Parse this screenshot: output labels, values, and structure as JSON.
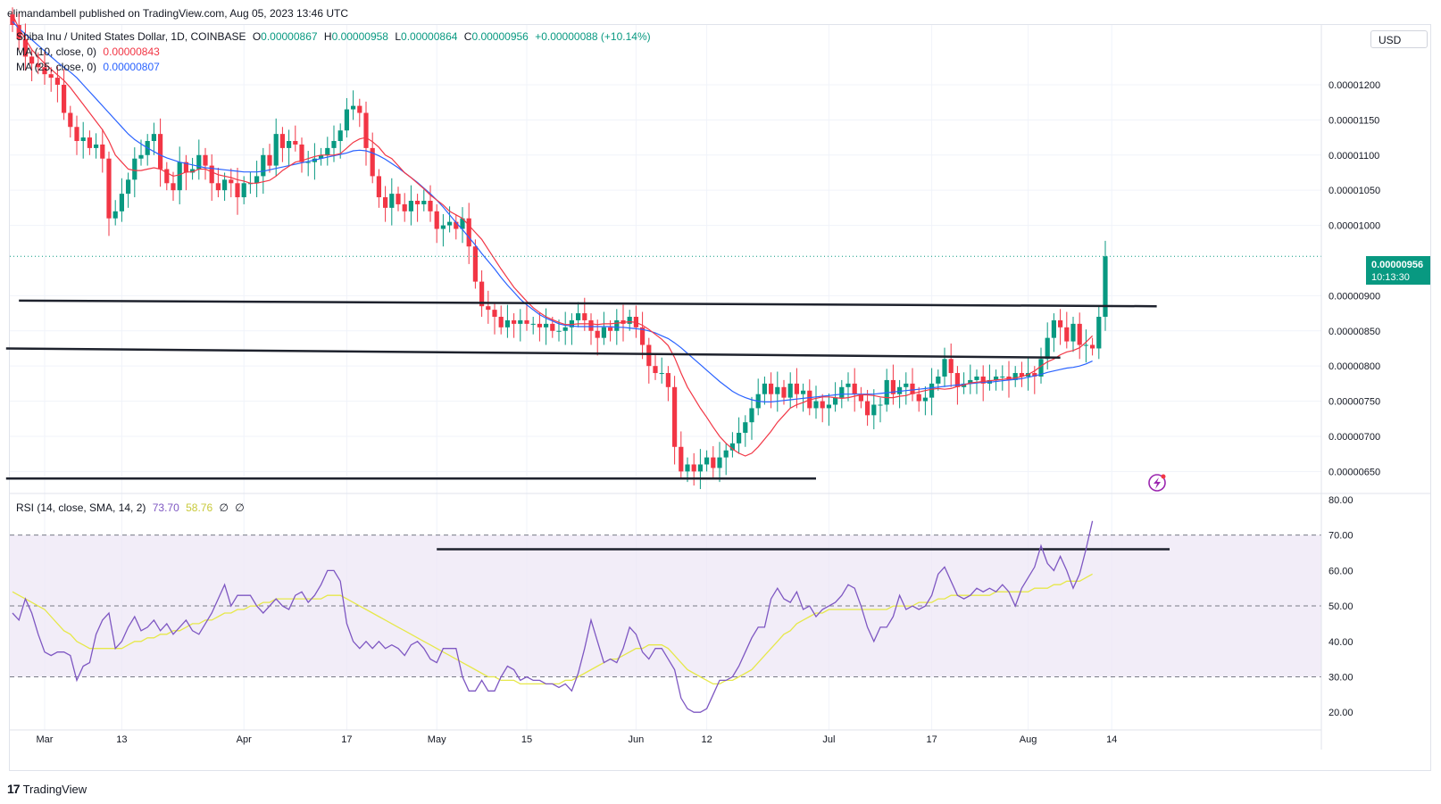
{
  "header": {
    "publisher_line": "elimandambell published on TradingView.com, Aug 05, 2023 13:46 UTC"
  },
  "legend": {
    "symbol": "Shiba Inu / United States Dollar, 1D, COINBASE",
    "ohlc": {
      "o_label": "O",
      "o": "0.00000867",
      "h_label": "H",
      "h": "0.00000958",
      "l_label": "L",
      "l": "0.00000864",
      "c_label": "C",
      "c": "0.00000956",
      "change": "+0.00000088 (+10.14%)"
    },
    "ma10": {
      "label": "MA (10, close, 0)",
      "value": "0.00000843"
    },
    "ma25": {
      "label": "MA (25, close, 0)",
      "value": "0.00000807"
    },
    "rsi": {
      "label": "RSI (14, close, SMA, 14, 2)",
      "value": "73.70",
      "sma": "58.76",
      "extra1": "∅",
      "extra2": "∅"
    }
  },
  "currency_button": "USD",
  "last_price": {
    "price": "0.00000956",
    "countdown": "10:13:30"
  },
  "brand": {
    "name": "TradingView"
  },
  "colors": {
    "up": "#089981",
    "down": "#f23645",
    "ma10": "#f23645",
    "ma25": "#2962ff",
    "rsi_line": "#7e57c2",
    "rsi_sma": "#e6e84a",
    "rsi_band": "#ede7f6",
    "trendline": "#1e222d"
  },
  "chart_data": [
    {
      "type": "candlestick",
      "y_scale_note": "price values in units of 1e-8 USD",
      "y_ticks": [
        {
          "value": 1200,
          "label": "0.00001200"
        },
        {
          "value": 1150,
          "label": "0.00001150"
        },
        {
          "value": 1100,
          "label": "0.00001100"
        },
        {
          "value": 1050,
          "label": "0.00001050"
        },
        {
          "value": 1000,
          "label": "0.00001000"
        },
        {
          "value": 900,
          "label": "0.00000900"
        },
        {
          "value": 850,
          "label": "0.00000850"
        },
        {
          "value": 800,
          "label": "0.00000800"
        },
        {
          "value": 750,
          "label": "0.00000750"
        },
        {
          "value": 700,
          "label": "0.00000700"
        },
        {
          "value": 650,
          "label": "0.00000650"
        }
      ],
      "ylim": [
        620,
        1285
      ],
      "x_ticks": [
        {
          "index": 5,
          "label": "Mar"
        },
        {
          "index": 17,
          "label": "13"
        },
        {
          "index": 36,
          "label": "Apr"
        },
        {
          "index": 52,
          "label": "17"
        },
        {
          "index": 66,
          "label": "May"
        },
        {
          "index": 80,
          "label": "15"
        },
        {
          "index": 97,
          "label": "Jun"
        },
        {
          "index": 108,
          "label": "12"
        },
        {
          "index": 127,
          "label": "Jul"
        },
        {
          "index": 143,
          "label": "17"
        },
        {
          "index": 158,
          "label": "Aug"
        },
        {
          "index": 171,
          "label": "14"
        }
      ],
      "closes": [
        1285,
        1265,
        1240,
        1230,
        1225,
        1215,
        1210,
        1200,
        1160,
        1140,
        1120,
        1125,
        1110,
        1115,
        1095,
        1010,
        1020,
        1045,
        1065,
        1095,
        1100,
        1120,
        1130,
        1080,
        1060,
        1050,
        1090,
        1075,
        1080,
        1100,
        1085,
        1060,
        1050,
        1065,
        1060,
        1040,
        1060,
        1060,
        1070,
        1100,
        1085,
        1130,
        1110,
        1120,
        1115,
        1090,
        1090,
        1095,
        1100,
        1110,
        1120,
        1135,
        1165,
        1170,
        1160,
        1110,
        1070,
        1040,
        1025,
        1045,
        1030,
        1020,
        1035,
        1030,
        1035,
        1020,
        995,
        1000,
        1005,
        995,
        1010,
        970,
        920,
        885,
        880,
        870,
        855,
        865,
        860,
        865,
        860,
        860,
        855,
        860,
        850,
        850,
        855,
        865,
        875,
        865,
        850,
        840,
        855,
        850,
        865,
        860,
        870,
        855,
        830,
        800,
        790,
        790,
        770,
        685,
        650,
        660,
        650,
        660,
        670,
        655,
        670,
        680,
        690,
        705,
        720,
        740,
        760,
        775,
        760,
        770,
        755,
        775,
        760,
        765,
        740,
        750,
        740,
        745,
        755,
        770,
        775,
        760,
        750,
        730,
        745,
        745,
        780,
        760,
        770,
        775,
        760,
        750,
        755,
        775,
        785,
        810,
        790,
        770,
        775,
        780,
        785,
        775,
        780,
        785,
        785,
        780,
        790,
        785,
        790,
        785,
        810,
        840,
        865,
        855,
        835,
        860,
        830,
        830,
        825,
        870,
        956
      ],
      "ma10": [
        1300,
        1280,
        1265,
        1250,
        1240,
        1230,
        1222,
        1214,
        1206,
        1196,
        1184,
        1172,
        1160,
        1148,
        1136,
        1120,
        1100,
        1090,
        1080,
        1078,
        1078,
        1080,
        1082,
        1080,
        1075,
        1070,
        1072,
        1076,
        1076,
        1080,
        1080,
        1076,
        1072,
        1070,
        1068,
        1065,
        1063,
        1060,
        1060,
        1062,
        1064,
        1070,
        1078,
        1084,
        1090,
        1092,
        1095,
        1098,
        1100,
        1100,
        1100,
        1102,
        1110,
        1118,
        1123,
        1125,
        1119,
        1111,
        1100,
        1095,
        1085,
        1075,
        1068,
        1060,
        1052,
        1043,
        1036,
        1029,
        1020,
        1015,
        1010,
        1000,
        990,
        980,
        966,
        952,
        938,
        925,
        912,
        902,
        892,
        883,
        876,
        870,
        866,
        862,
        859,
        859,
        860,
        860,
        860,
        859,
        860,
        860,
        861,
        862,
        863,
        862,
        858,
        852,
        845,
        838,
        829,
        812,
        790,
        770,
        755,
        740,
        727,
        713,
        700,
        690,
        682,
        676,
        672,
        676,
        685,
        696,
        707,
        720,
        730,
        740,
        745,
        748,
        752,
        754,
        756,
        756,
        755,
        754,
        755,
        757,
        759,
        759,
        758,
        756,
        755,
        755,
        757,
        758,
        761,
        763,
        765,
        767,
        768,
        767,
        768,
        771,
        773,
        776,
        777,
        778,
        779,
        780,
        781,
        782,
        783,
        785,
        788,
        793,
        800,
        806,
        810,
        816,
        820,
        822,
        826,
        834,
        843
      ],
      "ma25": [
        1290,
        1280,
        1272,
        1264,
        1256,
        1248,
        1240,
        1232,
        1225,
        1218,
        1210,
        1200,
        1190,
        1180,
        1170,
        1160,
        1150,
        1140,
        1130,
        1122,
        1116,
        1110,
        1105,
        1100,
        1096,
        1093,
        1090,
        1088,
        1086,
        1084,
        1082,
        1081,
        1080,
        1079,
        1078,
        1077,
        1076,
        1076,
        1076,
        1077,
        1079,
        1081,
        1083,
        1085,
        1087,
        1089,
        1091,
        1093,
        1095,
        1097,
        1099,
        1101,
        1103,
        1106,
        1107,
        1106,
        1103,
        1099,
        1094,
        1088,
        1082,
        1075,
        1068,
        1061,
        1053,
        1045,
        1036,
        1026,
        1015,
        1004,
        994,
        983,
        972,
        960,
        949,
        938,
        926,
        915,
        905,
        895,
        887,
        880,
        873,
        868,
        864,
        860,
        858,
        857,
        856,
        856,
        856,
        856,
        856,
        856,
        855,
        855,
        854,
        853,
        852,
        850,
        847,
        843,
        839,
        833,
        826,
        818,
        810,
        802,
        794,
        786,
        778,
        771,
        764,
        759,
        755,
        752,
        750,
        749,
        749,
        750,
        751,
        752,
        753,
        754,
        755,
        756,
        757,
        758,
        759,
        760,
        760,
        760,
        760,
        760,
        760,
        761,
        762,
        763,
        764,
        765,
        766,
        767,
        768,
        769,
        770,
        771,
        772,
        773,
        774,
        775,
        776,
        777,
        777,
        778,
        779,
        780,
        781,
        782,
        784,
        786,
        788,
        791,
        793,
        795,
        797,
        798,
        800,
        803,
        807
      ],
      "trendlines": [
        {
          "from": {
            "x": 1,
            "y": 893
          },
          "to": {
            "x": 178,
            "y": 885
          }
        },
        {
          "from": {
            "x": -1,
            "y": 825
          },
          "to": {
            "x": 163,
            "y": 812
          }
        },
        {
          "from": {
            "x": -1,
            "y": 640
          },
          "to": {
            "x": 125,
            "y": 640
          }
        }
      ],
      "last_price_line": 956
    },
    {
      "type": "line",
      "indicator": "RSI",
      "y_ticks": [
        80,
        70,
        60,
        50,
        40,
        30,
        20
      ],
      "y_tick_labels": [
        "80.00",
        "70.00",
        "60.00",
        "50.00",
        "40.00",
        "30.00",
        "20.00"
      ],
      "ylim": [
        15,
        81
      ],
      "band": [
        30,
        70
      ],
      "midline": 50,
      "rsi": [
        48,
        46,
        52,
        48,
        42,
        37,
        36,
        37,
        37,
        36,
        29,
        33,
        34,
        42,
        46,
        48,
        38,
        40,
        44,
        47,
        43,
        44,
        46,
        43,
        45,
        42,
        44,
        46,
        43,
        42,
        45,
        48,
        52,
        56,
        50,
        53,
        53,
        53,
        50,
        48,
        50,
        52,
        50,
        49,
        53,
        54,
        51,
        53,
        56,
        60,
        60,
        57,
        45,
        40,
        38,
        40,
        38,
        40,
        38,
        39,
        38,
        36,
        39,
        40,
        38,
        35,
        34,
        38,
        38,
        38,
        30,
        26,
        26,
        29,
        26,
        26,
        30,
        33,
        32,
        29,
        30,
        29,
        29,
        28,
        28,
        27,
        28,
        26,
        31,
        38,
        46,
        40,
        34,
        35,
        34,
        38,
        44,
        42,
        37,
        35,
        38,
        38,
        35,
        32,
        24,
        21,
        20,
        20,
        21,
        25,
        29,
        29,
        30,
        33,
        37,
        41,
        44,
        44,
        52,
        55,
        52,
        51,
        54,
        49,
        50,
        47,
        49,
        50,
        51,
        53,
        56,
        55,
        50,
        44,
        40,
        44,
        44,
        47,
        53,
        49,
        50,
        49,
        50,
        53,
        59,
        61,
        57,
        53,
        52,
        53,
        55,
        54,
        55,
        54,
        56,
        54,
        50,
        55,
        58,
        61,
        67,
        62,
        60,
        64,
        60,
        55,
        59,
        66,
        74
      ],
      "rsi_sma": [
        54,
        53,
        52,
        51,
        50,
        49,
        47,
        45,
        43,
        42,
        40,
        39,
        38,
        38,
        38,
        38,
        38,
        38,
        39,
        40,
        40,
        41,
        41,
        42,
        42,
        43,
        43,
        44,
        45,
        45,
        46,
        46,
        47,
        48,
        48,
        49,
        49,
        50,
        50,
        51,
        51,
        52,
        52,
        52,
        52,
        52,
        52,
        52,
        52,
        53,
        53,
        53,
        52,
        51,
        50,
        49,
        48,
        47,
        46,
        45,
        44,
        43,
        42,
        41,
        40,
        39,
        38,
        37,
        36,
        35,
        34,
        33,
        32,
        31,
        30,
        30,
        29,
        29,
        29,
        28,
        28,
        28,
        28,
        28,
        28,
        28,
        29,
        29,
        30,
        31,
        32,
        33,
        34,
        35,
        35,
        36,
        37,
        38,
        38,
        39,
        39,
        39,
        38,
        36,
        34,
        32,
        31,
        30,
        29,
        28,
        28,
        29,
        29,
        30,
        31,
        32,
        34,
        36,
        38,
        40,
        42,
        43,
        45,
        46,
        47,
        48,
        48,
        49,
        49,
        49,
        49,
        49,
        49,
        49,
        49,
        49,
        49,
        50,
        50,
        50,
        50,
        51,
        51,
        51,
        52,
        52,
        53,
        53,
        53,
        53,
        53,
        53,
        53,
        54,
        54,
        54,
        54,
        54,
        54,
        55,
        55,
        55,
        56,
        56,
        57,
        57,
        57,
        58,
        59
      ],
      "trendline": {
        "from": {
          "x": 66,
          "y": 66
        },
        "to": {
          "x": 180,
          "y": 66
        }
      }
    }
  ]
}
